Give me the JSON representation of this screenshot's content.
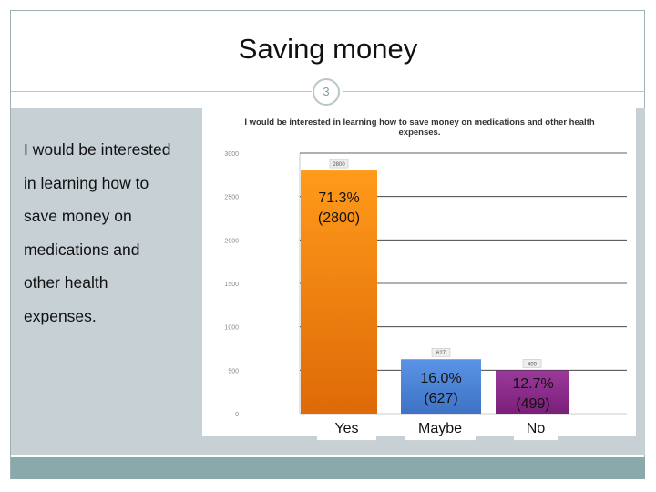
{
  "slide": {
    "title": "Saving money",
    "number": "3",
    "body_lines": [
      "I would be interested",
      "in learning how to",
      "save money on",
      "medications and",
      "other health",
      "expenses."
    ]
  },
  "chart_data": {
    "type": "bar",
    "title": "I would be interested in learning how to save money on medications and other health expenses.",
    "categories": [
      "Yes",
      "Maybe",
      "No"
    ],
    "values": [
      2800,
      627,
      499
    ],
    "value_labels": [
      "2800",
      "627",
      "499"
    ],
    "percent_labels": [
      "71.3%",
      "16.0%",
      "12.7%"
    ],
    "count_labels": [
      "(2800)",
      "(627)",
      "(499)"
    ],
    "bar_colors": [
      "#f07b0c",
      "#4f86d6",
      "#8a2c8a"
    ],
    "yticks": [
      0,
      500,
      1000,
      1500,
      2000,
      2500,
      3000
    ],
    "ytick_labels": [
      "0",
      "500",
      "1000",
      "1500",
      "2000",
      "2500",
      "3000"
    ],
    "ylim": [
      0,
      3000
    ],
    "grid": true
  }
}
